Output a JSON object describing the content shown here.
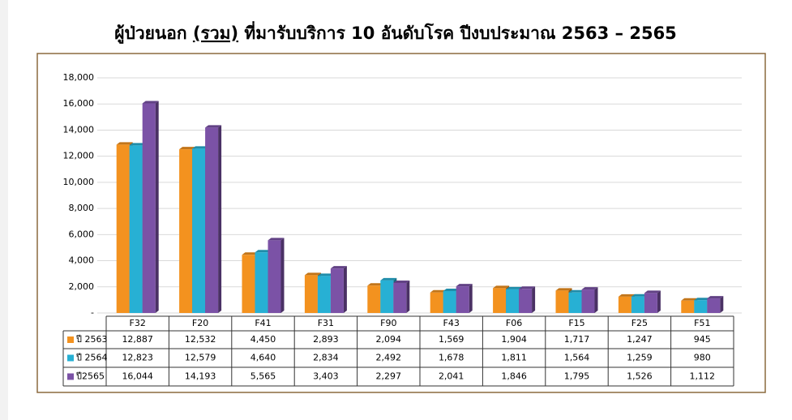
{
  "chart_data": {
    "type": "bar",
    "title": [
      "ผู้ป่วยนอก",
      "(รวม)",
      "ที่มารับบริการ 10 อันดับโรค ปีงบประมาณ  2563 – 2565"
    ],
    "categories": [
      "F32",
      "F20",
      "F41",
      "F31",
      "F90",
      "F43",
      "F06",
      "F15",
      "F25",
      "F51"
    ],
    "series": [
      {
        "name": "ปี 2563",
        "color": "#f3921f",
        "values": [
          12887,
          12532,
          4450,
          2893,
          2094,
          1569,
          1904,
          1717,
          1247,
          945
        ],
        "value_labels": [
          "12,887",
          "12,532",
          "4,450",
          "2,893",
          "2,094",
          "1,569",
          "1,904",
          "1,717",
          "1,247",
          "945"
        ]
      },
      {
        "name": "ปี 2564",
        "color": "#27b0d4",
        "values": [
          12823,
          12579,
          4640,
          2834,
          2492,
          1678,
          1811,
          1564,
          1259,
          980
        ],
        "value_labels": [
          "12,823",
          "12,579",
          "4,640",
          "2,834",
          "2,492",
          "1,678",
          "1,811",
          "1,564",
          "1,259",
          "980"
        ]
      },
      {
        "name": "ปี2565",
        "color": "#7b52a6",
        "values": [
          16044,
          14193,
          5565,
          3403,
          2297,
          2041,
          1846,
          1795,
          1526,
          1112
        ],
        "value_labels": [
          "16,044",
          "14,193",
          "5,565",
          "3,403",
          "2,297",
          "2,041",
          "1,846",
          "1,795",
          "1,526",
          "1,112"
        ]
      }
    ],
    "ylim": [
      0,
      18000
    ],
    "yticks": [
      {
        "value": 0,
        "label": "-"
      },
      {
        "value": 2000,
        "label": "2,000"
      },
      {
        "value": 4000,
        "label": "4,000"
      },
      {
        "value": 6000,
        "label": "6,000"
      },
      {
        "value": 8000,
        "label": "8,000"
      },
      {
        "value": 10000,
        "label": "10,000"
      },
      {
        "value": 12000,
        "label": "12,000"
      },
      {
        "value": 14000,
        "label": "14,000"
      },
      {
        "value": 16000,
        "label": "16,000"
      },
      {
        "value": 18000,
        "label": "18,000"
      }
    ],
    "grid": true
  }
}
